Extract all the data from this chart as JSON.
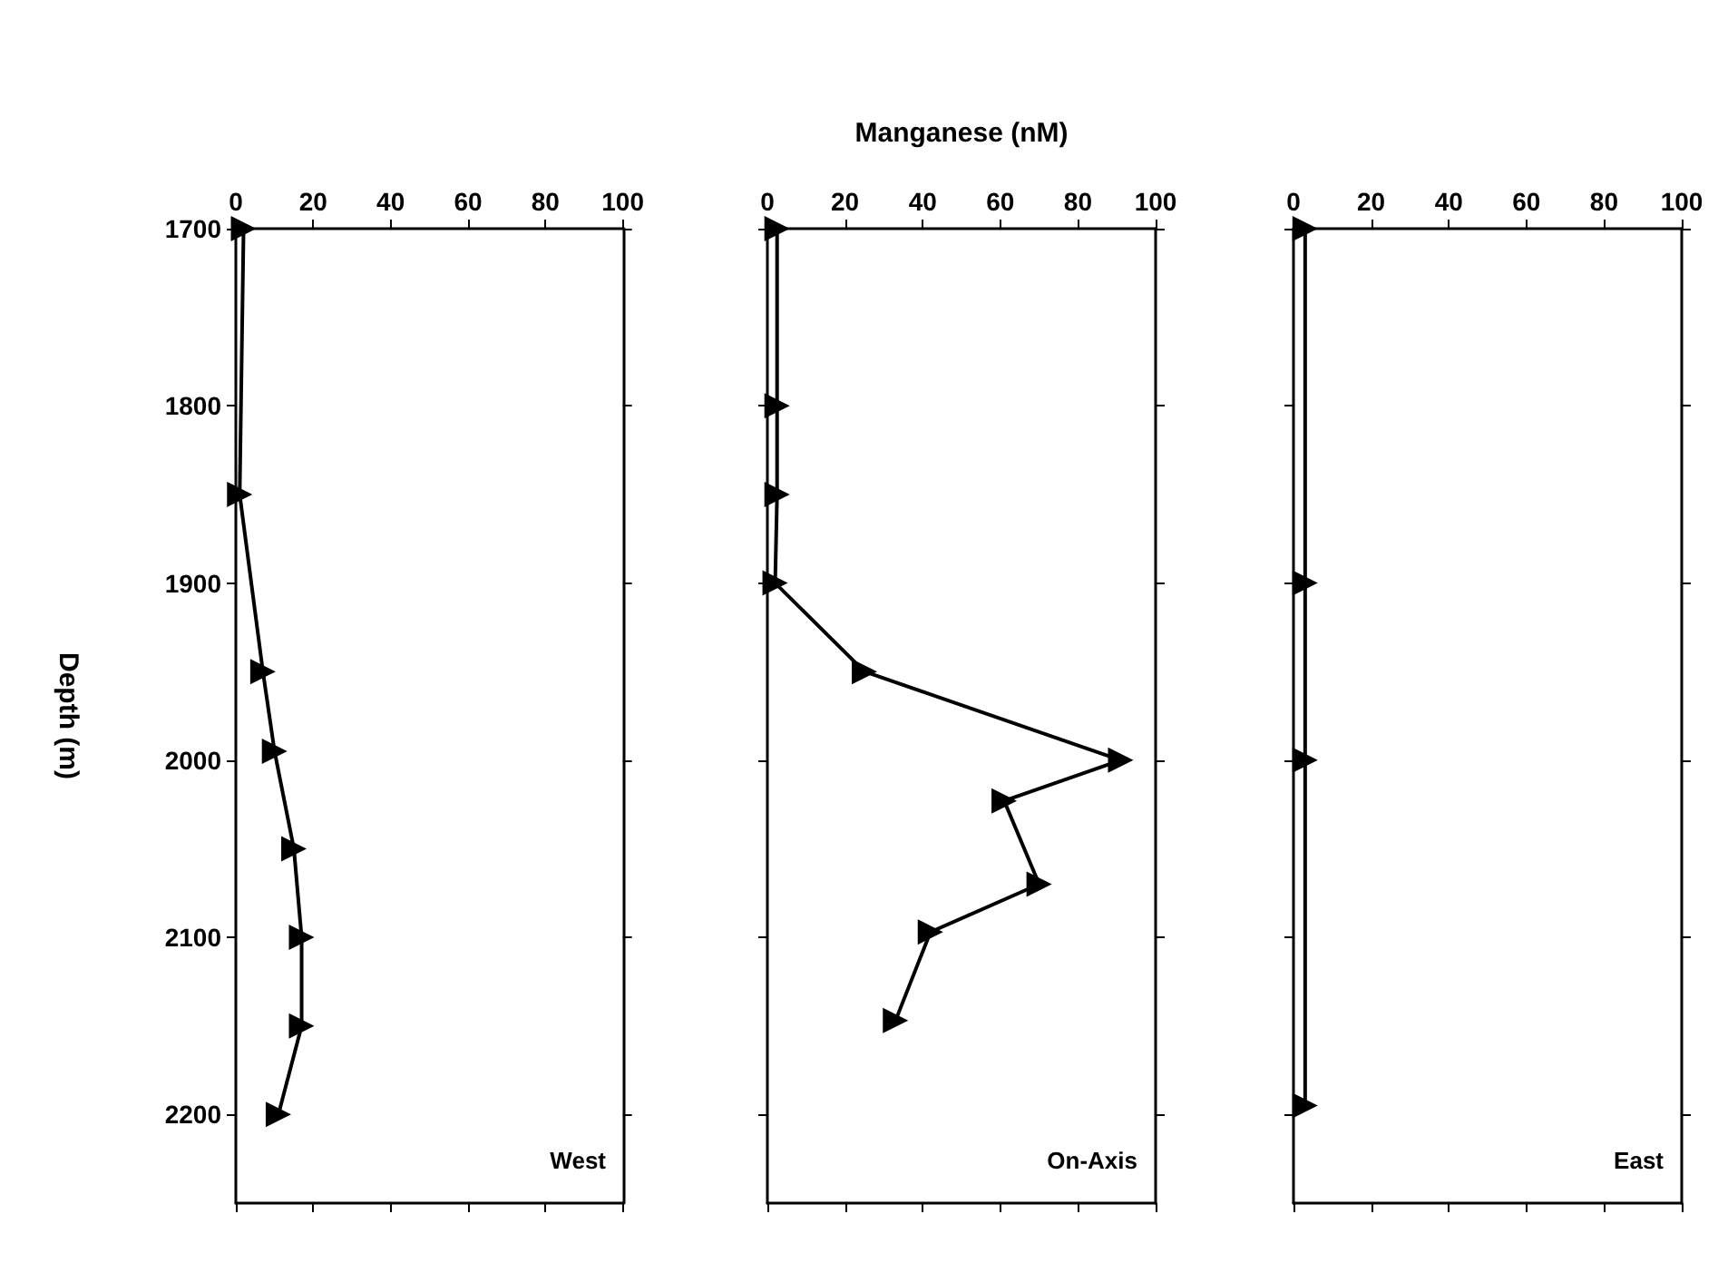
{
  "chart_data": [
    {
      "type": "line",
      "ylabel": "Depth (m)",
      "annotations": [
        "West"
      ],
      "xlim": [
        0,
        100
      ],
      "xticks": [
        0,
        20,
        40,
        60,
        80,
        100
      ],
      "ylim": [
        2250,
        1700
      ],
      "yticks": [
        1700,
        1800,
        1900,
        2000,
        2100,
        2200
      ],
      "marker": "triangle",
      "grid": false,
      "series": [
        {
          "color": "#000000",
          "x": [
            2,
            1,
            7,
            10,
            15,
            17,
            17,
            11
          ],
          "values": [
            1700,
            1850,
            1950,
            1995,
            2050,
            2100,
            2150,
            2200
          ]
        }
      ]
    },
    {
      "type": "line",
      "xlabel": "Manganese (nM)",
      "annotations": [
        "On-Axis"
      ],
      "xlim": [
        0,
        100
      ],
      "xticks": [
        0,
        20,
        40,
        60,
        80,
        100
      ],
      "ylim": [
        2250,
        1700
      ],
      "yticks": [
        1700,
        1800,
        1900,
        2000,
        2100,
        2200
      ],
      "tick_labels": "x",
      "marker": "triangle",
      "grid": false,
      "series": [
        {
          "color": "#000000",
          "x": [
            2.5,
            2.5,
            2.5,
            2,
            25,
            91,
            61,
            70,
            42,
            33
          ],
          "values": [
            1700,
            1800,
            1850,
            1900,
            1950,
            2000,
            2023,
            2070,
            2097,
            2147
          ]
        }
      ]
    },
    {
      "type": "line",
      "annotations": [
        "East"
      ],
      "xlim": [
        0,
        100
      ],
      "xticks": [
        0,
        20,
        40,
        60,
        80,
        100
      ],
      "ylim": [
        2250,
        1700
      ],
      "yticks": [
        1700,
        1800,
        1900,
        2000,
        2100,
        2200
      ],
      "tick_labels": "x",
      "marker": "triangle",
      "grid": false,
      "series": [
        {
          "color": "#000000",
          "x": [
            3,
            3,
            3,
            3
          ],
          "values": [
            1700,
            1900,
            2000,
            2195
          ]
        }
      ]
    }
  ]
}
